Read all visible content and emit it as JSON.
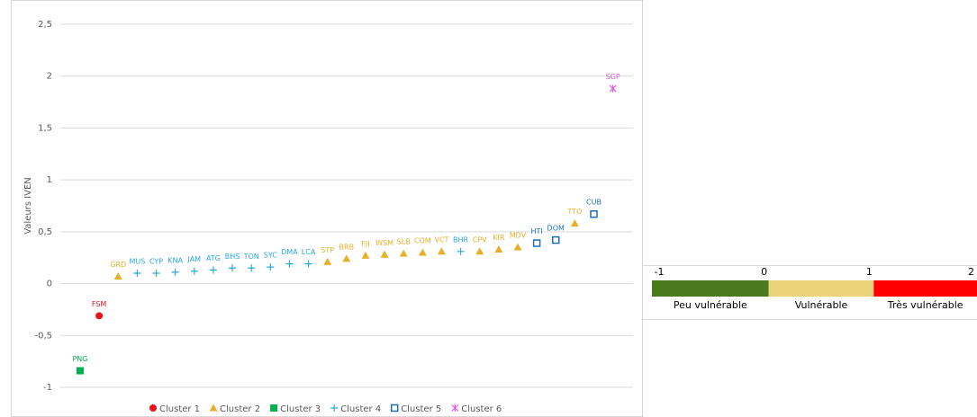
{
  "chart_data": {
    "type": "scatter",
    "y_label": "Valeurs IVEN",
    "categories": [
      "PNG",
      "FSM",
      "GRD",
      "MUS",
      "CYP",
      "KNA",
      "JAM",
      "ATG",
      "BHS",
      "TON",
      "SYC",
      "DMA",
      "LCA",
      "STP",
      "BRB",
      "FJI",
      "WSM",
      "SLB",
      "COM",
      "VCT",
      "BHR",
      "CPV",
      "KIR",
      "MDV",
      "HTI",
      "DOM",
      "TTO",
      "CUB",
      "SGP"
    ],
    "series": [
      {
        "name": "Cluster 1",
        "color": "#e8141c",
        "marker": "circle",
        "values": [
          null,
          -0.31,
          null,
          null,
          null,
          null,
          null,
          null,
          null,
          null,
          null,
          null,
          null,
          null,
          null,
          null,
          null,
          null,
          null,
          null,
          null,
          null,
          null,
          null,
          null,
          null,
          null,
          null,
          null
        ]
      },
      {
        "name": "Cluster 2",
        "color": "#e6b02a",
        "marker": "triangle",
        "values": [
          null,
          null,
          0.07,
          null,
          null,
          null,
          null,
          null,
          null,
          null,
          null,
          null,
          null,
          0.21,
          0.24,
          0.27,
          0.28,
          0.29,
          0.3,
          0.31,
          null,
          0.31,
          0.33,
          0.35,
          null,
          null,
          0.58,
          null,
          null
        ]
      },
      {
        "name": "Cluster 3",
        "color": "#00b050",
        "marker": "square",
        "values": [
          -0.84,
          null,
          null,
          null,
          null,
          null,
          null,
          null,
          null,
          null,
          null,
          null,
          null,
          null,
          null,
          null,
          null,
          null,
          null,
          null,
          null,
          null,
          null,
          null,
          null,
          null,
          null,
          null,
          null
        ]
      },
      {
        "name": "Cluster 4",
        "color": "#29a8e0",
        "marker": "plus",
        "values": [
          null,
          null,
          null,
          0.1,
          0.1,
          0.11,
          0.12,
          0.13,
          0.15,
          0.15,
          0.16,
          0.19,
          0.19,
          null,
          null,
          null,
          null,
          null,
          null,
          null,
          0.31,
          null,
          null,
          null,
          null,
          null,
          null,
          null,
          null
        ]
      },
      {
        "name": "Cluster 5",
        "color": "#1f6fb5",
        "marker": "square-open",
        "values": [
          null,
          null,
          null,
          null,
          null,
          null,
          null,
          null,
          null,
          null,
          null,
          null,
          null,
          null,
          null,
          null,
          null,
          null,
          null,
          null,
          null,
          null,
          null,
          null,
          0.39,
          0.42,
          null,
          0.67,
          null
        ]
      },
      {
        "name": "Cluster 6",
        "color": "#e05ce0",
        "marker": "star",
        "values": [
          null,
          null,
          null,
          null,
          null,
          null,
          null,
          null,
          null,
          null,
          null,
          null,
          null,
          null,
          null,
          null,
          null,
          null,
          null,
          null,
          null,
          null,
          null,
          null,
          null,
          null,
          null,
          null,
          1.88
        ]
      }
    ],
    "ylim": [
      -1,
      2.5
    ],
    "yticks": [
      -1,
      {
        "value": -0.5,
        "label": "-0,5"
      },
      0,
      {
        "value": 0.5,
        "label": "0,5"
      },
      1,
      {
        "value": 1.5,
        "label": "1,5"
      },
      2,
      {
        "value": 2.5,
        "label": "2,5"
      }
    ],
    "grid": true
  },
  "scale": {
    "ticks": [
      -1,
      0,
      1,
      2
    ],
    "segments": [
      {
        "label": "Peu vulnérable",
        "color": "#4a7a1e"
      },
      {
        "label": "Vulnérable",
        "color": "#ecd27a"
      },
      {
        "label": "Très vulnérable",
        "color": "#ff0000"
      }
    ]
  }
}
